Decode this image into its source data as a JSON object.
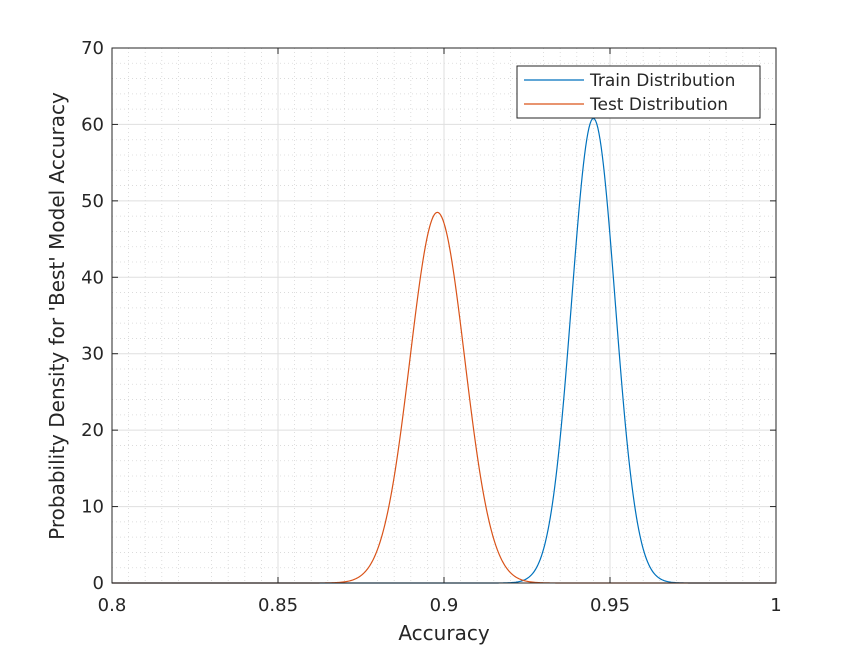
{
  "chart_data": {
    "type": "line",
    "title": "",
    "xlabel": "Accuracy",
    "ylabel": "Probability Density for 'Best' Model Accuracy",
    "xlim": [
      0.8,
      1.0
    ],
    "ylim": [
      0,
      70
    ],
    "x_ticks": [
      0.8,
      0.85,
      0.9,
      0.95,
      1.0
    ],
    "x_tick_labels": [
      "0.8",
      "0.85",
      "0.9",
      "0.95",
      "1"
    ],
    "y_ticks": [
      0,
      10,
      20,
      30,
      40,
      50,
      60,
      70
    ],
    "y_tick_labels": [
      "0",
      "10",
      "20",
      "30",
      "40",
      "50",
      "60",
      "70"
    ],
    "grid": true,
    "minor_grid": true,
    "legend_position": "top-right",
    "series": [
      {
        "name": "Train Distribution",
        "color": "#0072BD",
        "peak_x": 0.945,
        "peak_y": 60.8,
        "x": [
          0.8,
          0.92,
          0.925,
          0.93,
          0.933,
          0.936,
          0.939,
          0.942,
          0.944,
          0.945,
          0.946,
          0.948,
          0.951,
          0.954,
          0.957,
          0.96,
          0.965,
          0.97,
          1.0
        ],
        "y": [
          0,
          0.2,
          1.5,
          6.3,
          12.7,
          22.5,
          34.9,
          48.6,
          57.9,
          60.8,
          60.3,
          53.3,
          38.2,
          23.4,
          12.4,
          5.6,
          1.1,
          0.1,
          0
        ]
      },
      {
        "name": "Test Distribution",
        "color": "#D95319",
        "peak_x": 0.898,
        "peak_y": 48.5,
        "x": [
          0.8,
          0.865,
          0.87,
          0.875,
          0.88,
          0.885,
          0.89,
          0.894,
          0.898,
          0.902,
          0.906,
          0.91,
          0.915,
          0.92,
          0.925,
          0.93,
          1.0
        ],
        "y": [
          0,
          0.1,
          0.9,
          3.4,
          8.8,
          17.8,
          30.2,
          40.7,
          48.5,
          46.6,
          39.7,
          29.9,
          17.2,
          8.2,
          3.0,
          0.9,
          0
        ]
      }
    ]
  }
}
